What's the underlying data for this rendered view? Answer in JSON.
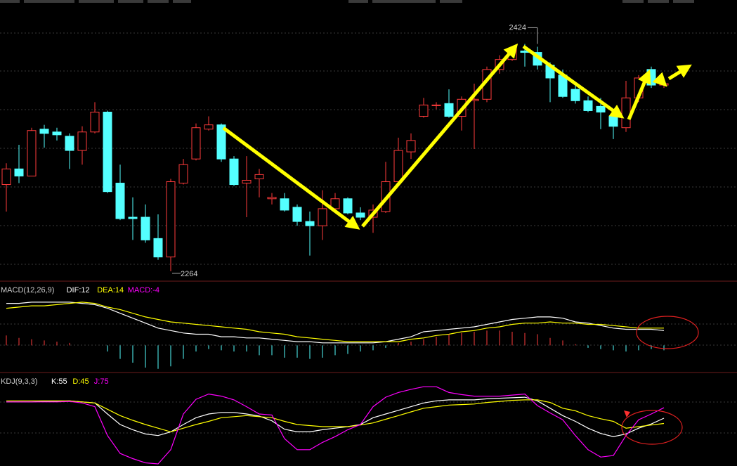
{
  "chart_data": [
    {
      "type": "candlestick",
      "open": [
        2325,
        2336,
        2331,
        2364,
        2362,
        2359,
        2349,
        2362,
        2376,
        2326,
        2302,
        2302,
        2287,
        2274,
        2326,
        2343,
        2364,
        2367,
        2343,
        2326,
        2329,
        2315,
        2315,
        2309,
        2299,
        2296,
        2308,
        2315,
        2305,
        2302,
        2306,
        2327,
        2348,
        2373,
        2381,
        2382,
        2373,
        2384,
        2385,
        2406,
        2413,
        2419,
        2418,
        2409,
        2402,
        2392,
        2384,
        2380,
        2373,
        2365,
        2386,
        2406,
        2395
      ],
      "close": [
        2336,
        2331,
        2363,
        2361,
        2360,
        2349,
        2362,
        2376,
        2320,
        2301,
        2301,
        2286,
        2274,
        2327,
        2339,
        2365,
        2367,
        2343,
        2325,
        2328,
        2332,
        2316,
        2307,
        2299,
        2296,
        2308,
        2315,
        2305,
        2302,
        2307,
        2327,
        2349,
        2356,
        2381,
        2381,
        2373,
        2385,
        2385,
        2406,
        2413,
        2421,
        2418,
        2409,
        2400,
        2387,
        2384,
        2377,
        2376,
        2366,
        2386,
        2400,
        2395,
        2396
      ],
      "high": [
        2340,
        2353,
        2365,
        2367,
        2365,
        2361,
        2366,
        2383,
        2377,
        2339,
        2316,
        2311,
        2304,
        2329,
        2343,
        2368,
        2373,
        2368,
        2345,
        2345,
        2336,
        2319,
        2319,
        2311,
        2306,
        2321,
        2319,
        2316,
        2309,
        2311,
        2341,
        2358,
        2361,
        2386,
        2383,
        2392,
        2387,
        2396,
        2408,
        2416,
        2422,
        2424,
        2422,
        2411,
        2406,
        2396,
        2387,
        2386,
        2378,
        2398,
        2402,
        2408,
        2398
      ],
      "low": [
        2306,
        2326,
        2331,
        2351,
        2356,
        2336,
        2339,
        2361,
        2319,
        2300,
        2286,
        2284,
        2272,
        2264,
        2325,
        2342,
        2363,
        2341,
        2324,
        2302,
        2316,
        2311,
        2306,
        2296,
        2275,
        2286,
        2306,
        2304,
        2300,
        2291,
        2305,
        2326,
        2343,
        2372,
        2378,
        2372,
        2363,
        2350,
        2383,
        2403,
        2412,
        2408,
        2406,
        2383,
        2386,
        2382,
        2376,
        2364,
        2357,
        2362,
        2383,
        2393,
        2393
      ],
      "up_color": "#ff3b3b",
      "down_color": "#54ffff",
      "ylim": [
        2257,
        2445
      ],
      "annotations": [
        2424,
        2264
      ]
    },
    {
      "type": "macd",
      "title": "MACD(12,26,9)",
      "ylim": [
        -22,
        52
      ],
      "series": [
        {
          "name": "DIF:12",
          "color": "#ffffff",
          "values": [
            34,
            34,
            35,
            35,
            35,
            35,
            34,
            33,
            30,
            26,
            22,
            18,
            14,
            12,
            10,
            9,
            9,
            7,
            7,
            6,
            6,
            5,
            4,
            3,
            3,
            2,
            2,
            2,
            2,
            2,
            3,
            5,
            7,
            11,
            12,
            13,
            14,
            15,
            17,
            19,
            21,
            22,
            23,
            23,
            22,
            19,
            18,
            16,
            14,
            13,
            13,
            13,
            12
          ]
        },
        {
          "name": "DEA:14",
          "color": "#ffff00",
          "values": [
            30,
            31,
            32,
            32,
            33,
            34,
            35,
            34,
            31,
            29,
            26,
            23,
            21,
            19,
            18,
            17,
            16,
            15,
            14,
            13,
            11,
            10,
            9,
            7,
            6,
            5,
            4,
            3,
            3,
            3,
            3,
            3,
            5,
            6,
            8,
            9,
            11,
            12,
            14,
            15,
            17,
            18,
            18,
            19,
            18,
            18,
            17,
            17,
            16,
            15,
            14,
            14,
            14
          ]
        },
        {
          "name": "MACD:-4",
          "color": "#ff00ff",
          "type": "bar",
          "up_color": "#ff3b3b",
          "down_color": "#54ffff",
          "values": [
            8,
            6,
            5,
            4,
            3,
            2,
            0,
            0,
            -5,
            -11,
            -14,
            -18,
            -19,
            -17,
            -11,
            -5,
            -3,
            -4,
            -5,
            -5,
            -8,
            -8,
            -10,
            -10,
            -11,
            -10,
            -8,
            -7,
            -5,
            -4,
            -2,
            2,
            3,
            5,
            7,
            9,
            10,
            11,
            12,
            12,
            11,
            10,
            9,
            6,
            4,
            1,
            -2,
            -3,
            -4,
            -5,
            -4,
            -3,
            -4
          ]
        }
      ]
    },
    {
      "type": "kdj",
      "title": "KDJ(9,3,3)",
      "ylim": [
        -36,
        142
      ],
      "series": [
        {
          "name": "K:55",
          "color": "#ffffff",
          "values": [
            86,
            86,
            86,
            87,
            87,
            88,
            86,
            84,
            63,
            43,
            33,
            25,
            22,
            29,
            43,
            56,
            63,
            66,
            66,
            63,
            59,
            50,
            34,
            29,
            29,
            33,
            36,
            39,
            43,
            56,
            63,
            70,
            77,
            84,
            88,
            90,
            90,
            90,
            92,
            93,
            94,
            95,
            88,
            74,
            60,
            49,
            36,
            26,
            20,
            25,
            36,
            44,
            55
          ]
        },
        {
          "name": "D:45",
          "color": "#ffff00",
          "values": [
            88,
            88,
            88,
            88,
            88,
            88,
            86,
            84,
            72,
            60,
            51,
            43,
            36,
            29,
            36,
            43,
            49,
            56,
            58,
            60,
            58,
            56,
            49,
            43,
            41,
            39,
            39,
            39,
            42,
            46,
            53,
            60,
            67,
            74,
            77,
            80,
            81,
            82,
            85,
            87,
            89,
            90,
            90,
            85,
            74,
            69,
            60,
            54,
            49,
            36,
            39,
            42,
            45
          ]
        },
        {
          "name": "J:75",
          "color": "#ff00ff",
          "values": [
            86,
            86,
            86,
            86,
            86,
            87,
            84,
            77,
            22,
            -12,
            -22,
            -30,
            -32,
            -5,
            63,
            91,
            101,
            97,
            90,
            77,
            63,
            61,
            16,
            -5,
            -5,
            9,
            20,
            33,
            43,
            77,
            95,
            104,
            110,
            115,
            115,
            104,
            100,
            97,
            97,
            97,
            99,
            101,
            79,
            65,
            52,
            22,
            -5,
            -19,
            -16,
            22,
            52,
            63,
            75
          ]
        }
      ]
    }
  ]
}
